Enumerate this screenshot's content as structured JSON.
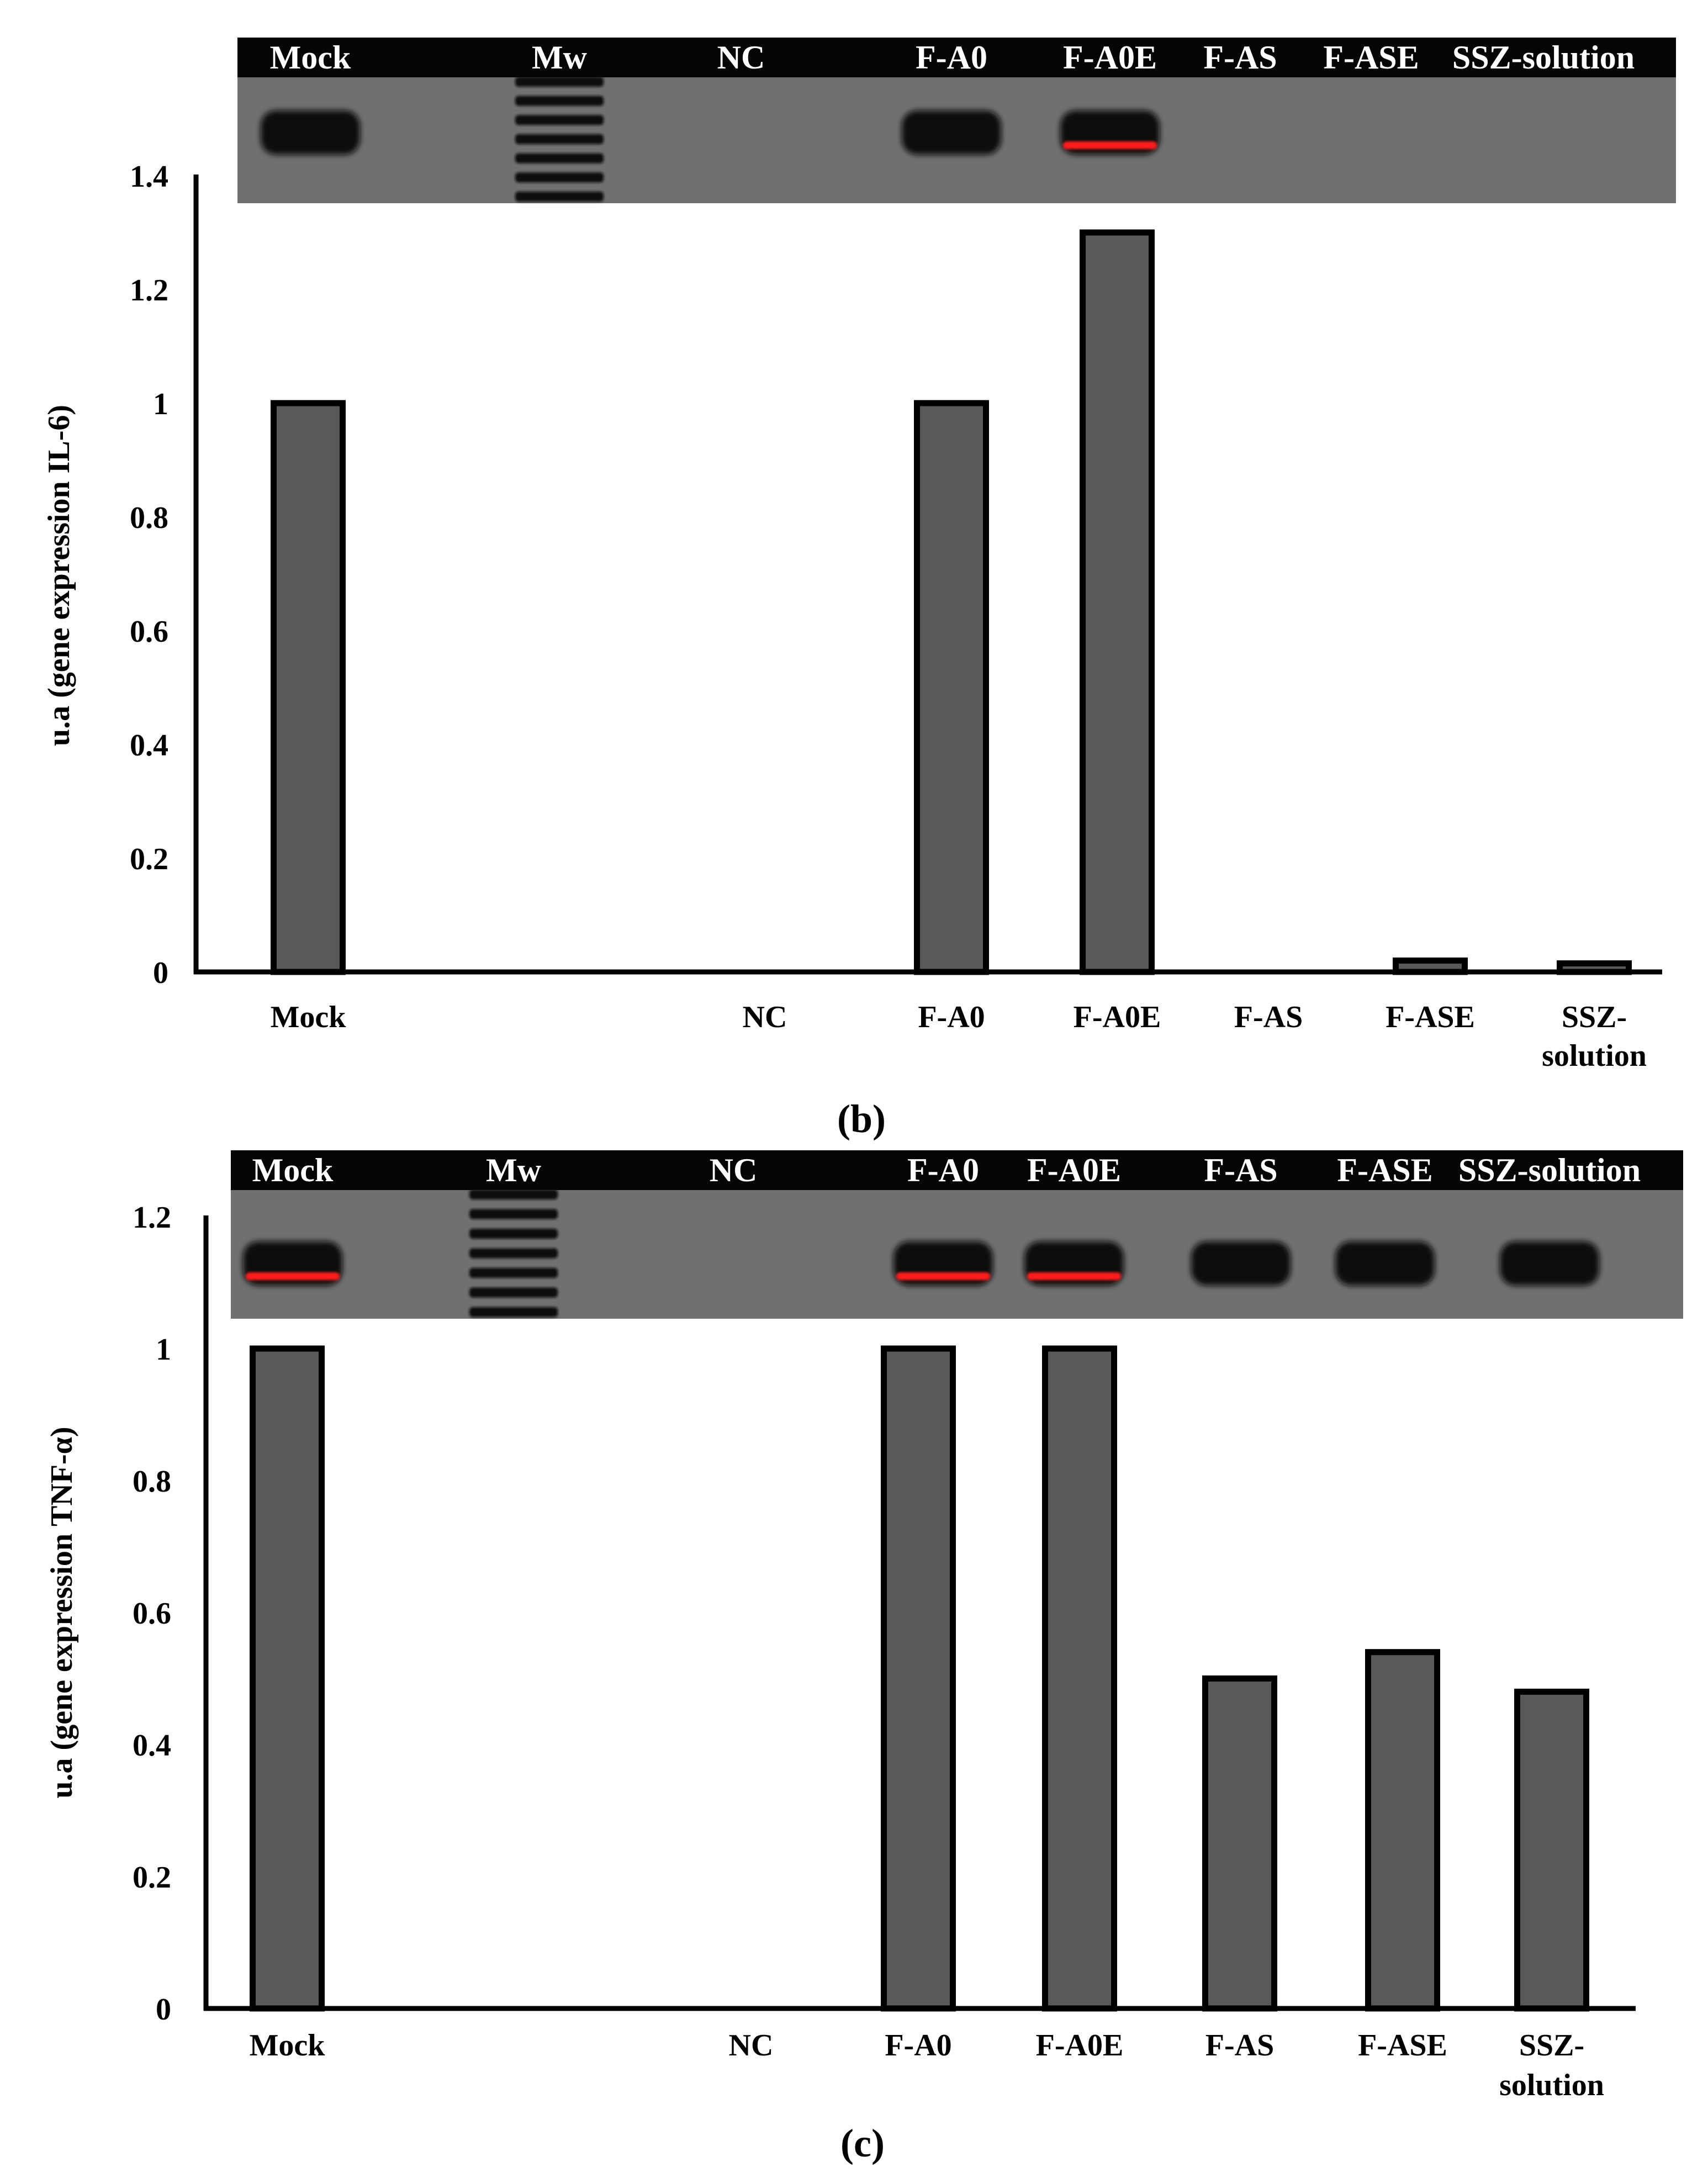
{
  "colors": {
    "bar_fill": "#595959",
    "bar_stroke": "#000000",
    "axis": "#000000",
    "gel_bg": "#707070",
    "gel_header": "#050505",
    "band_dark": "#101010",
    "band_red": "#ff1a1a",
    "label_white": "#ffffff"
  },
  "chart_data": [
    {
      "type": "bar",
      "panel_label": "(b)",
      "ylabel": "u.a (gene expression IL-6)",
      "xlabel": "",
      "ylim": [
        0,
        1.4
      ],
      "yticks": [
        0,
        0.2,
        0.4,
        0.6,
        0.8,
        1,
        1.2,
        1.4
      ],
      "ytick_labels": [
        "0",
        "0.2",
        "0.4",
        "0.6",
        "0.8",
        "1",
        "1.2",
        "1.4"
      ],
      "categories": [
        "Mock",
        "Mw",
        "NC",
        "F-A0",
        "F-A0E",
        "F-AS",
        "F-ASE",
        "SSZ-solution"
      ],
      "x_labels": [
        [
          "Mock"
        ],
        [],
        [
          "NC"
        ],
        [
          "F-A0"
        ],
        [
          "F-A0E"
        ],
        [
          "F-AS"
        ],
        [
          "F-ASE"
        ],
        [
          "SSZ-",
          "solution"
        ]
      ],
      "values": [
        1.0,
        null,
        0,
        1.0,
        1.3,
        0,
        0.02,
        0.015
      ],
      "grid": false,
      "legend": "none",
      "gel": {
        "lane_labels": [
          "Mock",
          "Mw",
          "NC",
          "F-A0",
          "F-A0E",
          "F-AS",
          "F-ASE",
          "SSZ-solution"
        ],
        "bands": [
          "dark",
          "ladder",
          "none",
          "dark",
          "red",
          "none",
          "none",
          "none"
        ]
      }
    },
    {
      "type": "bar",
      "panel_label": "(c)",
      "ylabel": "u.a (gene expression TNF-α)",
      "xlabel": "",
      "ylim": [
        0,
        1.2
      ],
      "yticks": [
        0,
        0.2,
        0.4,
        0.6,
        0.8,
        1,
        1.2
      ],
      "ytick_labels": [
        "0",
        "0.2",
        "0.4",
        "0.6",
        "0.8",
        "1",
        "1.2"
      ],
      "categories": [
        "Mock",
        "Mw",
        "NC",
        "F-A0",
        "F-A0E",
        "F-AS",
        "F-ASE",
        "SSZ-solution"
      ],
      "x_labels": [
        [
          "Mock"
        ],
        [],
        [
          "NC"
        ],
        [
          "F-A0"
        ],
        [
          "F-A0E"
        ],
        [
          "F-AS"
        ],
        [
          "F-ASE"
        ],
        [
          "SSZ-",
          "solution"
        ]
      ],
      "values": [
        1.0,
        null,
        0,
        1.0,
        1.0,
        0.5,
        0.54,
        0.48
      ],
      "grid": false,
      "legend": "none",
      "gel": {
        "lane_labels": [
          "Mock",
          "Mw",
          "NC",
          "F-A0",
          "F-A0E",
          "F-AS",
          "F-ASE",
          "SSZ-solution"
        ],
        "bands": [
          "red",
          "ladder",
          "none",
          "red",
          "red",
          "dark",
          "dark",
          "dark"
        ]
      }
    }
  ]
}
